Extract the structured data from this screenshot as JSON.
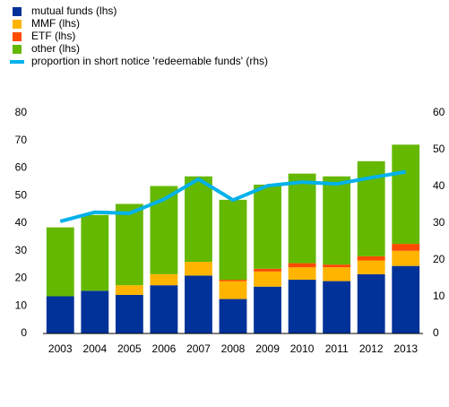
{
  "chart_data": {
    "type": "bar",
    "categories": [
      "2003",
      "2004",
      "2005",
      "2006",
      "2007",
      "2008",
      "2009",
      "2010",
      "2011",
      "2012",
      "2013"
    ],
    "series": [
      {
        "name": "mutual funds (lhs)",
        "color": "#003299",
        "values": [
          13.5,
          15.5,
          14,
          17.5,
          21,
          12.5,
          17,
          19.5,
          19,
          21.5,
          24.5
        ]
      },
      {
        "name": "MMF (lhs)",
        "color": "#ffb400",
        "values": [
          0,
          0,
          3.5,
          4,
          5,
          6.5,
          5.5,
          4.5,
          5,
          5,
          5.5
        ]
      },
      {
        "name": "ETF (lhs)",
        "color": "#ff4b00",
        "values": [
          0,
          0,
          0,
          0,
          0,
          0.5,
          1,
          1.5,
          1,
          1.5,
          2.5
        ]
      },
      {
        "name": "other (lhs)",
        "color": "#65b800",
        "values": [
          25,
          27.5,
          29.5,
          32,
          31,
          29,
          30.5,
          32.5,
          32,
          34.5,
          36
        ]
      },
      {
        "name": "proportion in short notice 'redeemable funds' (rhs)",
        "color": "#00b1ea",
        "type": "line",
        "axis": "y2",
        "values": [
          30.5,
          33,
          32.7,
          36.5,
          42,
          36.3,
          40.2,
          41.2,
          40.7,
          42.4,
          44
        ]
      }
    ],
    "ylim": [
      0,
      80
    ],
    "yticks": [
      0,
      10,
      20,
      30,
      40,
      50,
      60,
      70,
      80
    ],
    "y2lim": [
      0,
      60
    ],
    "y2ticks": [
      0,
      10,
      20,
      30,
      40,
      50,
      60
    ]
  }
}
